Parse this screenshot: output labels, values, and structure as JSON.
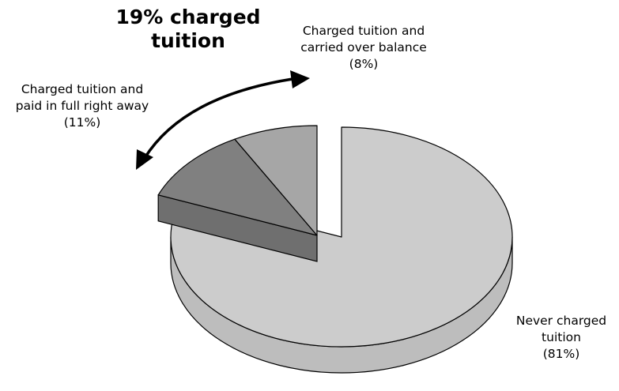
{
  "chart_data": {
    "type": "pie",
    "style": "3d-exploded",
    "title": "",
    "callout": {
      "line1": "19% charged",
      "line2": "tuition",
      "value": 19
    },
    "slices": [
      {
        "key": "never",
        "value": 81,
        "label_lines": [
          "Never charged",
          "tuition",
          "(81%)"
        ],
        "color": "#cccccc"
      },
      {
        "key": "paid",
        "value": 11,
        "label_lines": [
          "Charged tuition and",
          "paid in full right away",
          "(11%)"
        ],
        "color": "#808080"
      },
      {
        "key": "carried",
        "value": 8,
        "label_lines": [
          "Charged tuition and",
          "carried over balance",
          "(8%)"
        ],
        "color": "#a6a6a6"
      }
    ],
    "colors": {
      "stroke": "#000000",
      "never_side": "#bdbdbd",
      "paid_side": "#6f6f6f",
      "carried_side": "#969696"
    }
  }
}
